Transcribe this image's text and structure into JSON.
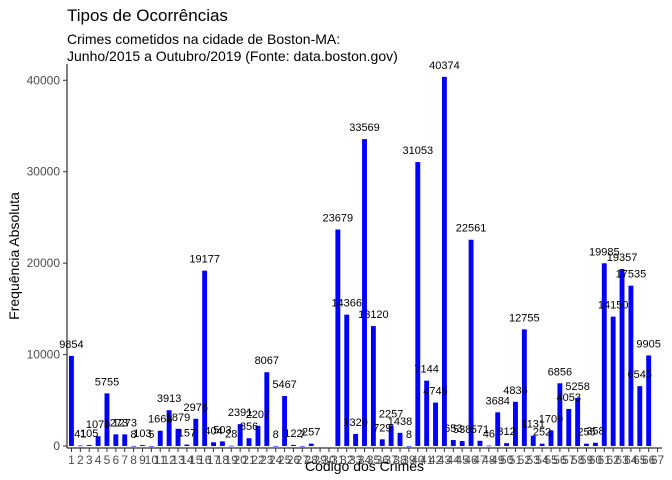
{
  "chart_data": {
    "type": "bar",
    "title": "Tipos de Ocorrências",
    "subtitle_lines": [
      "Crimes cometidos na cidade de Boston-MA:",
      "Junho/2015 a Outubro/2019 (Fonte: data.boston.gov)"
    ],
    "xlabel": "Código dos Crimes",
    "ylabel": "Frequência Absoluta",
    "ylim": [
      0,
      42000
    ],
    "yticks": [
      0,
      10000,
      20000,
      30000,
      40000
    ],
    "bar_color": "#0000ff",
    "grid": false,
    "categories": [
      "1",
      "2",
      "3",
      "4",
      "5",
      "6",
      "7",
      "8",
      "9",
      "10",
      "11",
      "12",
      "13",
      "14",
      "15",
      "16",
      "17",
      "18",
      "19",
      "20",
      "21",
      "22",
      "23",
      "24",
      "25",
      "26",
      "27",
      "28",
      "29",
      "30",
      "31",
      "32",
      "33",
      "34",
      "35",
      "36",
      "37",
      "38",
      "39",
      "40",
      "41",
      "42",
      "43",
      "44",
      "45",
      "46",
      "47",
      "48",
      "49",
      "50",
      "51",
      "52",
      "53",
      "54",
      "55",
      "56",
      "57",
      "58",
      "59",
      "60",
      "61",
      "62",
      "63",
      "64",
      "65",
      "66",
      "67"
    ],
    "values": [
      9854,
      41,
      105,
      1070,
      5755,
      1273,
      1273,
      8,
      103,
      5,
      1668,
      3913,
      1879,
      157,
      2976,
      19177,
      404,
      503,
      28,
      2391,
      856,
      2207,
      8067,
      8,
      5467,
      122,
      7,
      257,
      0,
      0,
      23679,
      14366,
      1320,
      33569,
      13120,
      729,
      2257,
      1438,
      8,
      31053,
      7144,
      4745,
      40374,
      653,
      538,
      22561,
      571,
      46,
      3684,
      312,
      4836,
      12755,
      1131,
      252,
      1709,
      6856,
      4053,
      5258,
      255,
      358,
      19985,
      14150,
      19357,
      17535,
      6545,
      9905,
      0
    ],
    "data_labels": [
      "9854",
      "41",
      "105",
      "1070",
      "5755",
      "1273",
      "1273",
      "8",
      "103",
      "5",
      "1668",
      "3913",
      "1879",
      "157",
      "2976",
      "19177",
      "404",
      "503",
      "28",
      "2391",
      "856",
      "2207",
      "8067",
      "8",
      "5467",
      "122",
      "7",
      "257",
      "",
      "",
      "23679",
      "14366",
      "1320",
      "33569",
      "13120",
      "729",
      "2257",
      "1438",
      "8",
      "31053",
      "7144",
      "4745",
      "40374",
      "653",
      "538",
      "22561",
      "571",
      "46",
      "3684",
      "312",
      "4836",
      "12755",
      "1131",
      "252",
      "1709",
      "6856",
      "4053",
      "5258",
      "255",
      "358",
      "19985",
      "14150",
      "19357",
      "17535",
      "6545",
      "9905",
      ""
    ]
  }
}
